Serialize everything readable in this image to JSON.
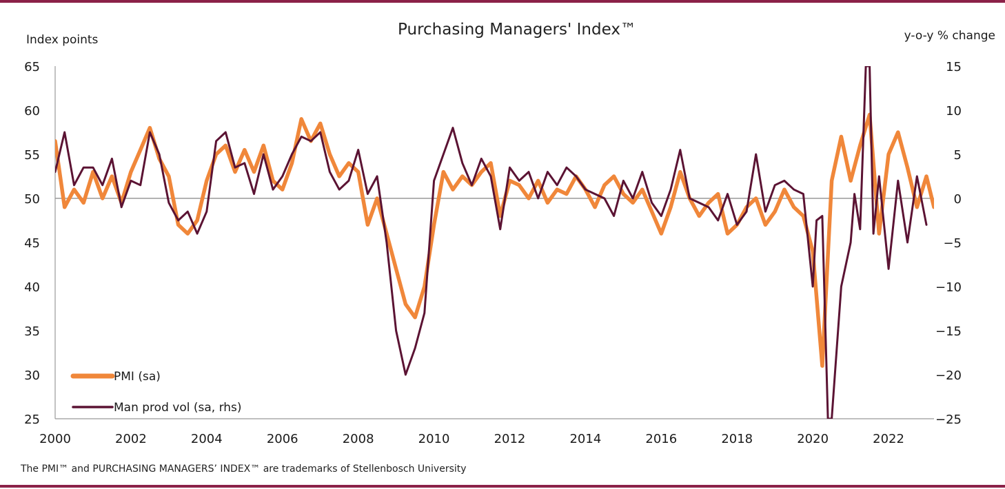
{
  "chart_data": {
    "type": "line",
    "title": "Purchasing Managers' Index™",
    "ylabel_left": "Index points",
    "ylabel_right": "y-o-y % change",
    "footnote": "The PMI™ and PURCHASING MANAGERS’ INDEX™ are trademarks of Stellenbosch University",
    "xlim": [
      2000,
      2023.2
    ],
    "ylim_left": [
      25,
      65
    ],
    "ylim_right": [
      -25,
      15
    ],
    "x_ticks": [
      "2000",
      "2002",
      "2004",
      "2006",
      "2008",
      "2010",
      "2012",
      "2014",
      "2016",
      "2018",
      "2020",
      "2022"
    ],
    "y_ticks_left": [
      "65",
      "60",
      "55",
      "50",
      "45",
      "40",
      "35",
      "30",
      "25"
    ],
    "y_ticks_right": [
      "15",
      "10",
      "5",
      "0",
      "-5",
      "-10",
      "-15",
      "-20",
      "-25"
    ],
    "reference_line": 50,
    "grid": false,
    "legend_position": "bottom-left",
    "colors": {
      "pmi": "#f0873a",
      "prod": "#5b1333",
      "rule": "#8b2148",
      "axis": "#999999"
    },
    "series": [
      {
        "name": "PMI (sa)",
        "axis": "left",
        "x": [
          2000.0,
          2000.25,
          2000.5,
          2000.75,
          2001.0,
          2001.25,
          2001.5,
          2001.75,
          2002.0,
          2002.25,
          2002.5,
          2002.75,
          2003.0,
          2003.25,
          2003.5,
          2003.75,
          2004.0,
          2004.25,
          2004.5,
          2004.75,
          2005.0,
          2005.25,
          2005.5,
          2005.75,
          2006.0,
          2006.25,
          2006.5,
          2006.75,
          2007.0,
          2007.25,
          2007.5,
          2007.75,
          2008.0,
          2008.25,
          2008.5,
          2008.75,
          2009.0,
          2009.25,
          2009.5,
          2009.75,
          2010.0,
          2010.25,
          2010.5,
          2010.75,
          2011.0,
          2011.25,
          2011.5,
          2011.75,
          2012.0,
          2012.25,
          2012.5,
          2012.75,
          2013.0,
          2013.25,
          2013.5,
          2013.75,
          2014.0,
          2014.25,
          2014.5,
          2014.75,
          2015.0,
          2015.25,
          2015.5,
          2015.75,
          2016.0,
          2016.25,
          2016.5,
          2016.75,
          2017.0,
          2017.25,
          2017.5,
          2017.75,
          2018.0,
          2018.25,
          2018.5,
          2018.75,
          2019.0,
          2019.25,
          2019.5,
          2019.75,
          2020.0,
          2020.25,
          2020.5,
          2020.75,
          2021.0,
          2021.25,
          2021.5,
          2021.75,
          2022.0,
          2022.25,
          2022.5,
          2022.75,
          2023.0,
          2023.2
        ],
        "values": [
          56.5,
          49.0,
          51.0,
          49.5,
          53.0,
          50.0,
          52.5,
          49.5,
          53.0,
          55.5,
          58.0,
          54.5,
          52.5,
          47.0,
          46.0,
          47.5,
          52.0,
          55.0,
          56.0,
          53.0,
          55.5,
          53.0,
          56.0,
          52.0,
          51.0,
          54.0,
          59.0,
          56.5,
          58.5,
          55.0,
          52.5,
          54.0,
          53.0,
          47.0,
          50.0,
          46.0,
          42.0,
          38.0,
          36.5,
          40.0,
          47.0,
          53.0,
          51.0,
          52.5,
          51.5,
          53.0,
          54.0,
          48.0,
          52.0,
          51.5,
          50.0,
          52.0,
          49.5,
          51.0,
          50.5,
          52.5,
          51.0,
          49.0,
          51.5,
          52.5,
          50.5,
          49.5,
          51.0,
          48.5,
          46.0,
          49.0,
          53.0,
          50.0,
          48.0,
          49.5,
          50.5,
          46.0,
          47.0,
          49.0,
          50.0,
          47.0,
          48.5,
          51.0,
          49.0,
          48.0,
          44.0,
          31.0,
          52.0,
          57.0,
          52.0,
          56.0,
          59.5,
          46.0,
          55.0,
          57.5,
          53.5,
          49.0,
          52.5,
          49.0
        ]
      },
      {
        "name": "Man prod vol (sa, rhs)",
        "axis": "right",
        "x": [
          2000.0,
          2000.25,
          2000.5,
          2000.75,
          2001.0,
          2001.25,
          2001.5,
          2001.75,
          2002.0,
          2002.25,
          2002.5,
          2002.75,
          2003.0,
          2003.25,
          2003.5,
          2003.75,
          2004.0,
          2004.25,
          2004.5,
          2004.75,
          2005.0,
          2005.25,
          2005.5,
          2005.75,
          2006.0,
          2006.25,
          2006.5,
          2006.75,
          2007.0,
          2007.25,
          2007.5,
          2007.75,
          2008.0,
          2008.25,
          2008.5,
          2008.75,
          2009.0,
          2009.25,
          2009.5,
          2009.75,
          2010.0,
          2010.25,
          2010.5,
          2010.75,
          2011.0,
          2011.25,
          2011.5,
          2011.75,
          2012.0,
          2012.25,
          2012.5,
          2012.75,
          2013.0,
          2013.25,
          2013.5,
          2013.75,
          2014.0,
          2014.25,
          2014.5,
          2014.75,
          2015.0,
          2015.25,
          2015.5,
          2015.75,
          2016.0,
          2016.25,
          2016.5,
          2016.75,
          2017.0,
          2017.25,
          2017.5,
          2017.75,
          2018.0,
          2018.25,
          2018.5,
          2018.75,
          2019.0,
          2019.25,
          2019.5,
          2019.75,
          2020.0,
          2020.1,
          2020.25,
          2020.4,
          2020.5,
          2020.75,
          2021.0,
          2021.1,
          2021.25,
          2021.4,
          2021.5,
          2021.6,
          2021.75,
          2022.0,
          2022.25,
          2022.5,
          2022.75,
          2023.0
        ],
        "values": [
          3.0,
          7.5,
          1.5,
          3.5,
          3.5,
          1.5,
          4.5,
          -1.0,
          2.0,
          1.5,
          7.5,
          5.0,
          -0.5,
          -2.5,
          -1.5,
          -4.0,
          -1.5,
          6.5,
          7.5,
          3.5,
          4.0,
          0.5,
          5.0,
          1.0,
          2.5,
          5.0,
          7.0,
          6.5,
          7.5,
          3.0,
          1.0,
          2.0,
          5.5,
          0.5,
          2.5,
          -5.0,
          -15.0,
          -20.0,
          -17.0,
          -13.0,
          2.0,
          5.0,
          8.0,
          4.0,
          1.5,
          4.5,
          2.5,
          -3.5,
          3.5,
          2.0,
          3.0,
          0.0,
          3.0,
          1.5,
          3.5,
          2.5,
          1.0,
          0.5,
          0.0,
          -2.0,
          2.0,
          0.0,
          3.0,
          -0.5,
          -2.0,
          1.0,
          5.5,
          0.0,
          -0.5,
          -1.0,
          -2.5,
          0.5,
          -3.0,
          -1.5,
          5.0,
          -1.5,
          1.5,
          2.0,
          1.0,
          0.5,
          -10.0,
          -2.5,
          -2.0,
          -25.0,
          -25.0,
          -10.0,
          -5.0,
          0.5,
          -3.5,
          15.0,
          15.0,
          -4.0,
          2.5,
          -8.0,
          2.0,
          -5.0,
          2.5,
          -3.0
        ]
      }
    ]
  }
}
